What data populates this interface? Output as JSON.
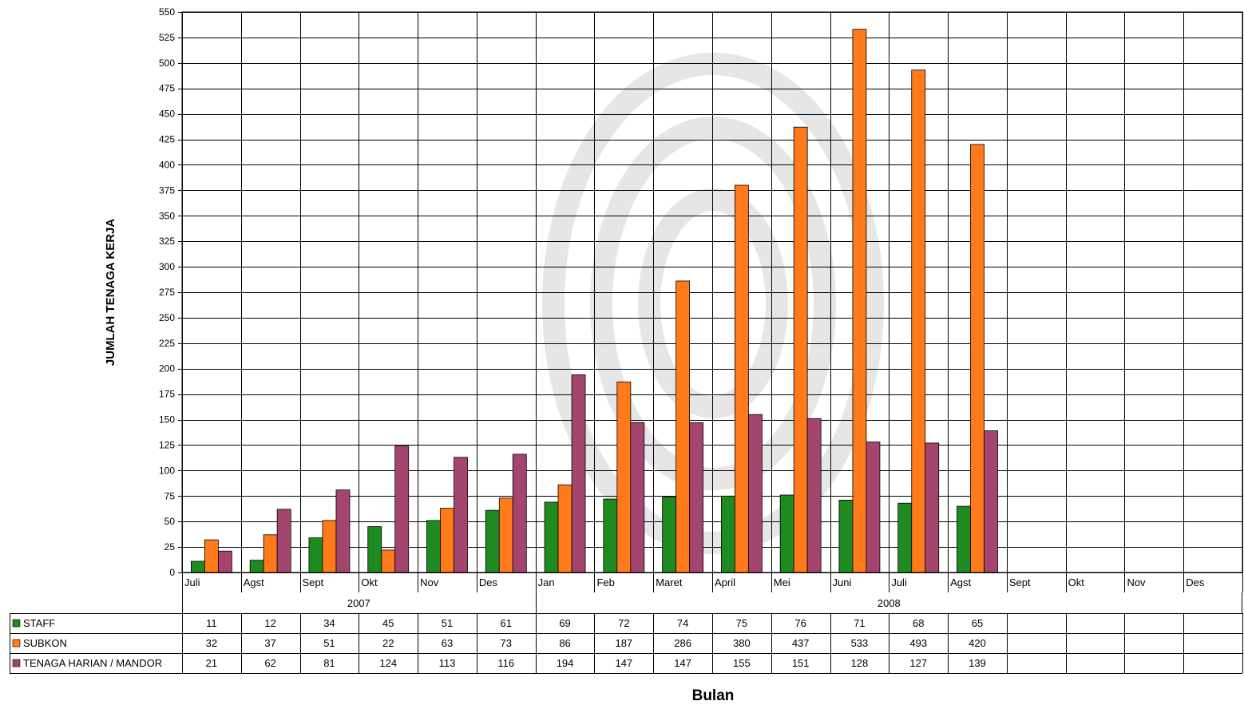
{
  "chart_data": {
    "type": "bar",
    "ylabel": "JUMLAH TENAGA KERJA",
    "xlabel": "Bulan",
    "ylim": [
      0,
      550
    ],
    "ytick_step": 25,
    "grid": true,
    "categories": [
      "Juli",
      "Agst",
      "Sept",
      "Okt",
      "Nov",
      "Des",
      "Jan",
      "Feb",
      "Maret",
      "April",
      "Mei",
      "Juni",
      "Juli",
      "Agst",
      "Sept",
      "Okt",
      "Nov",
      "Des"
    ],
    "groups": [
      {
        "label": "2007",
        "start": 0,
        "count": 6
      },
      {
        "label": "2008",
        "start": 6,
        "count": 12
      }
    ],
    "series": [
      {
        "name": "STAFF",
        "color": "#1f8a1f",
        "values": [
          11,
          12,
          34,
          45,
          51,
          61,
          69,
          72,
          74,
          75,
          76,
          71,
          68,
          65,
          null,
          null,
          null,
          null
        ]
      },
      {
        "name": "SUBKON",
        "color": "#ff7a1a",
        "values": [
          32,
          37,
          51,
          22,
          63,
          73,
          86,
          187,
          286,
          380,
          437,
          533,
          493,
          420,
          null,
          null,
          null,
          null
        ]
      },
      {
        "name": "TENAGA HARIAN / MANDOR",
        "color": "#a3456f",
        "values": [
          21,
          62,
          81,
          124,
          113,
          116,
          194,
          147,
          147,
          155,
          151,
          128,
          127,
          139,
          null,
          null,
          null,
          null
        ]
      }
    ]
  }
}
